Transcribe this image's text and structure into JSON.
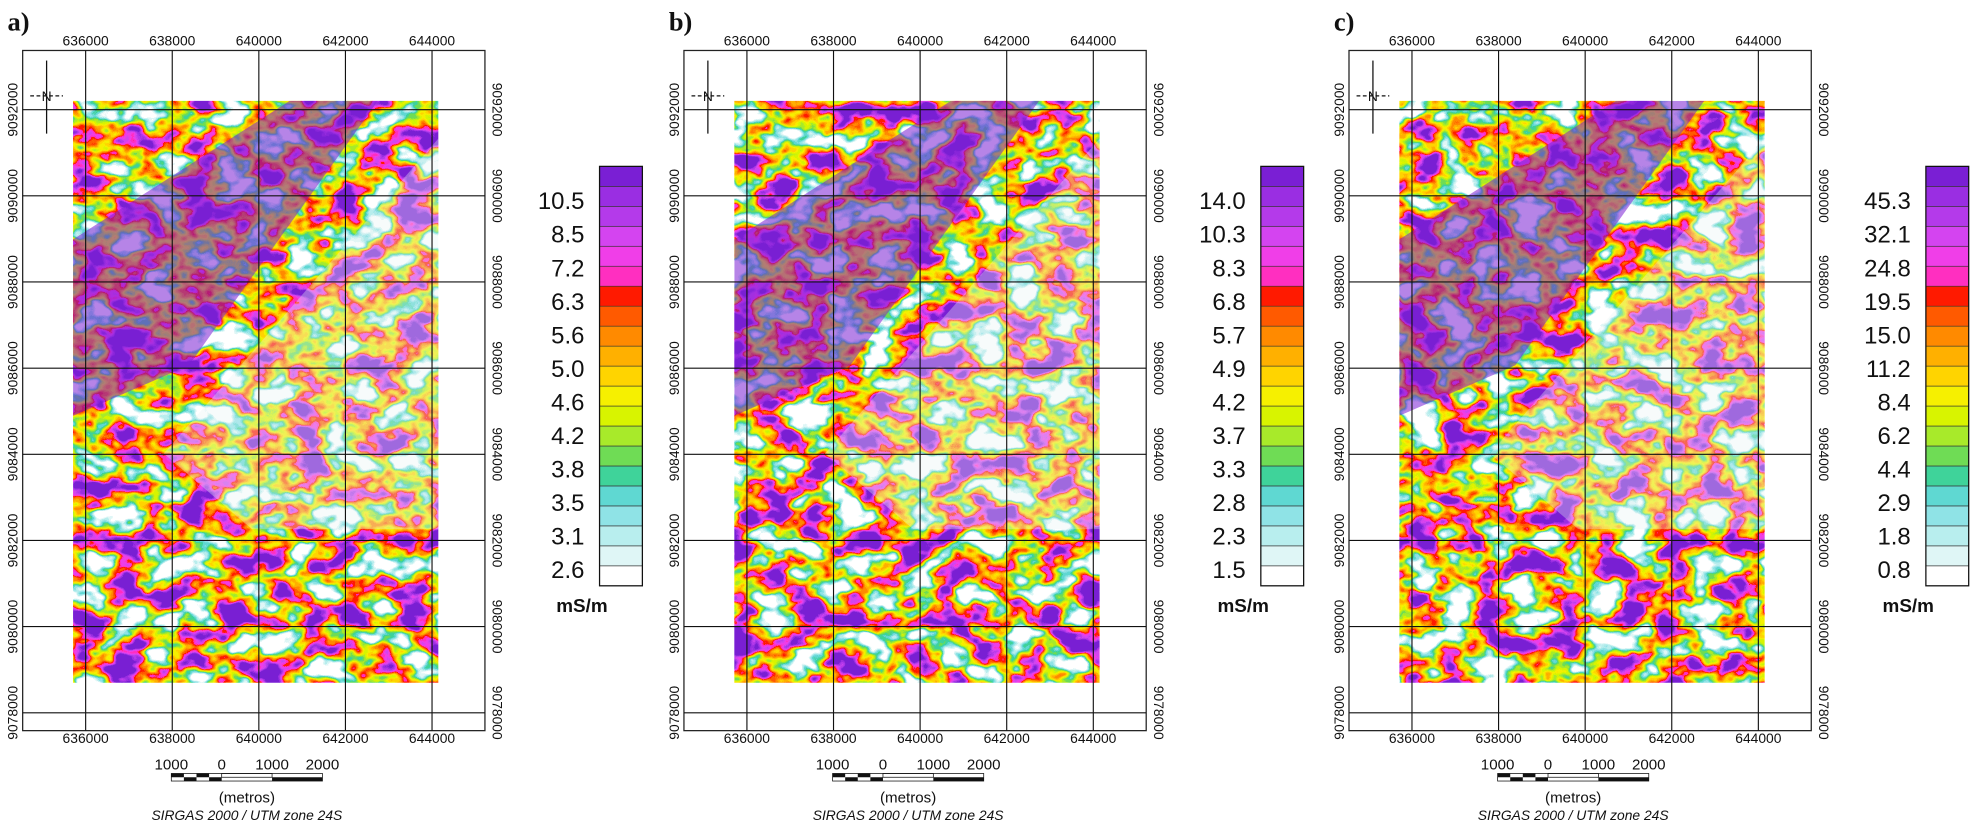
{
  "axes": {
    "x_labels": [
      "636000",
      "638000",
      "640000",
      "642000",
      "644000"
    ],
    "y_labels": [
      "9092000",
      "9090000",
      "9088000",
      "9086000",
      "9084000",
      "9082000",
      "9080000",
      "9078000"
    ]
  },
  "north_label": "N",
  "palette": [
    "#ffffff",
    "#dff6f6",
    "#b8eeee",
    "#8fe3e6",
    "#5fd8d2",
    "#3fd39a",
    "#6fdc55",
    "#a8ea2a",
    "#d8f400",
    "#f6f000",
    "#ffd400",
    "#ffb000",
    "#ff8a00",
    "#ff5a00",
    "#ff1a00",
    "#ff2fc0",
    "#f03ee8",
    "#d444f0",
    "#b43aea",
    "#9a2ee2",
    "#7a1fd4"
  ],
  "scale_bar": {
    "labels": [
      "1000",
      "0",
      "1000",
      "2000"
    ],
    "unit": "(metros)",
    "crs": "SIRGAS 2000 / UTM zone 24S"
  },
  "panels": [
    {
      "label": "a)",
      "legend": {
        "labels": [
          "10.5",
          "8.5",
          "7.2",
          "6.3",
          "5.6",
          "5.0",
          "4.6",
          "4.2",
          "3.8",
          "3.5",
          "3.1",
          "2.6"
        ],
        "unit": "mS/m"
      }
    },
    {
      "label": "b)",
      "legend": {
        "labels": [
          "14.0",
          "10.3",
          "8.3",
          "6.8",
          "5.7",
          "4.9",
          "4.2",
          "3.7",
          "3.3",
          "2.8",
          "2.3",
          "1.5"
        ],
        "unit": "mS/m"
      }
    },
    {
      "label": "c)",
      "legend": {
        "labels": [
          "45.3",
          "32.1",
          "24.8",
          "19.5",
          "15.0",
          "11.2",
          "8.4",
          "6.2",
          "4.4",
          "2.9",
          "1.8",
          "0.8"
        ],
        "unit": "mS/m"
      }
    }
  ]
}
